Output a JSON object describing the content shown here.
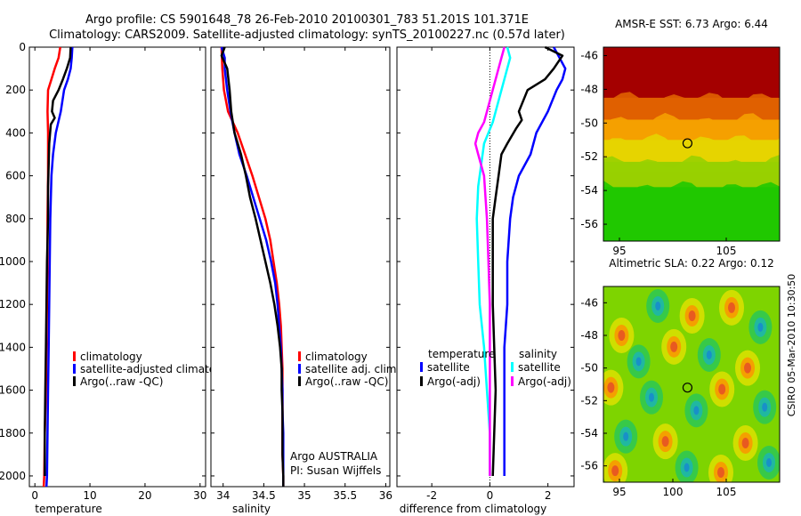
{
  "title": {
    "line1": "Argo profile: CS 5901648_78 26-Feb-2010 20100301_783 51.201S 101.371E",
    "line2": "Climatology: CARS2009. Satellite-adjusted climatology: synTS_20100227.nc (0.57d later)"
  },
  "side_label": "CSIRO 05-Mar-2010 10:30:50",
  "colors": {
    "red": "#ff0000",
    "blue": "#0000ff",
    "black": "#000000",
    "cyan": "#00ffff",
    "magenta": "#ff00ff"
  },
  "chart_data": [
    {
      "type": "line",
      "xlabel": "temperature",
      "ylabel": "",
      "xlim": [
        -1,
        31
      ],
      "ylim": [
        2050,
        0
      ],
      "xticks": [
        0,
        10,
        20,
        30
      ],
      "yticks": [
        0,
        200,
        400,
        600,
        800,
        1000,
        1200,
        1400,
        1600,
        1800,
        2000
      ],
      "legend": [
        "climatology",
        "satellite-adjusted climatolo",
        "Argo(..raw -QC)"
      ],
      "legend_placement": "lower-right",
      "series": [
        {
          "name": "climatology",
          "color": "red",
          "points": [
            [
              4.6,
              0
            ],
            [
              4.3,
              50
            ],
            [
              3.6,
              100
            ],
            [
              3.0,
              150
            ],
            [
              2.4,
              200
            ],
            [
              2.3,
              300
            ],
            [
              2.4,
              400
            ],
            [
              2.4,
              500
            ],
            [
              2.4,
              600
            ],
            [
              2.3,
              800
            ],
            [
              2.3,
              1000
            ],
            [
              2.2,
              1200
            ],
            [
              2.1,
              1400
            ],
            [
              2.0,
              1600
            ],
            [
              1.8,
              1800
            ],
            [
              1.7,
              2000
            ],
            [
              1.6,
              2050
            ]
          ]
        },
        {
          "name": "satellite-adjusted climatolo",
          "color": "blue",
          "points": [
            [
              6.8,
              0
            ],
            [
              6.7,
              50
            ],
            [
              6.5,
              100
            ],
            [
              6.0,
              150
            ],
            [
              5.3,
              200
            ],
            [
              4.7,
              300
            ],
            [
              3.8,
              400
            ],
            [
              3.3,
              500
            ],
            [
              3.0,
              600
            ],
            [
              2.8,
              800
            ],
            [
              2.7,
              1000
            ],
            [
              2.6,
              1200
            ],
            [
              2.5,
              1400
            ],
            [
              2.4,
              1600
            ],
            [
              2.3,
              1800
            ],
            [
              2.2,
              2000
            ],
            [
              2.1,
              2050
            ]
          ]
        },
        {
          "name": "Argo(..raw -QC)",
          "color": "black",
          "points": [
            [
              6.5,
              0
            ],
            [
              6.4,
              50
            ],
            [
              5.8,
              100
            ],
            [
              5.1,
              150
            ],
            [
              4.3,
              200
            ],
            [
              3.3,
              250
            ],
            [
              3.1,
              300
            ],
            [
              3.6,
              330
            ],
            [
              2.9,
              360
            ],
            [
              2.6,
              450
            ],
            [
              2.5,
              550
            ],
            [
              2.4,
              650
            ],
            [
              2.4,
              800
            ],
            [
              2.2,
              1000
            ],
            [
              2.1,
              1200
            ],
            [
              2.0,
              1400
            ],
            [
              1.9,
              1600
            ],
            [
              1.8,
              1800
            ],
            [
              1.8,
              2000
            ]
          ]
        }
      ],
      "annotations": []
    },
    {
      "type": "line",
      "xlabel": "salinity",
      "ylabel": "",
      "xlim": [
        33.85,
        36.05
      ],
      "ylim": [
        2050,
        0
      ],
      "xticks": [
        34,
        34.5,
        35,
        35.5,
        36
      ],
      "legend": [
        "climatology",
        "satellite adj. clim.",
        "Argo(..raw -QC)"
      ],
      "legend_placement": "lower-right",
      "series": [
        {
          "name": "climatology",
          "color": "red",
          "points": [
            [
              33.98,
              0
            ],
            [
              33.99,
              100
            ],
            [
              34.01,
              200
            ],
            [
              34.06,
              300
            ],
            [
              34.18,
              400
            ],
            [
              34.27,
              500
            ],
            [
              34.36,
              600
            ],
            [
              34.44,
              700
            ],
            [
              34.52,
              800
            ],
            [
              34.58,
              900
            ],
            [
              34.62,
              1000
            ],
            [
              34.66,
              1100
            ],
            [
              34.69,
              1200
            ],
            [
              34.71,
              1300
            ],
            [
              34.72,
              1400
            ],
            [
              34.73,
              1500
            ],
            [
              34.73,
              1600
            ],
            [
              34.73,
              1700
            ],
            [
              34.73,
              1800
            ],
            [
              34.73,
              1900
            ],
            [
              34.74,
              2000
            ],
            [
              34.74,
              2050
            ]
          ]
        },
        {
          "name": "satellite adj. clim.",
          "color": "blue",
          "points": [
            [
              33.98,
              0
            ],
            [
              34.02,
              50
            ],
            [
              34.02,
              100
            ],
            [
              34.05,
              200
            ],
            [
              34.09,
              300
            ],
            [
              34.14,
              400
            ],
            [
              34.2,
              500
            ],
            [
              34.29,
              600
            ],
            [
              34.37,
              700
            ],
            [
              34.45,
              800
            ],
            [
              34.53,
              900
            ],
            [
              34.59,
              1000
            ],
            [
              34.64,
              1100
            ],
            [
              34.67,
              1200
            ],
            [
              34.69,
              1300
            ],
            [
              34.71,
              1400
            ],
            [
              34.72,
              1500
            ],
            [
              34.73,
              1600
            ],
            [
              34.73,
              1700
            ],
            [
              34.74,
              1800
            ],
            [
              34.74,
              1900
            ],
            [
              34.74,
              2000
            ],
            [
              34.74,
              2050
            ]
          ]
        },
        {
          "name": "Argo(..raw -QC)",
          "color": "black",
          "points": [
            [
              34.02,
              0
            ],
            [
              33.98,
              40
            ],
            [
              34.05,
              100
            ],
            [
              34.08,
              200
            ],
            [
              34.1,
              300
            ],
            [
              34.14,
              400
            ],
            [
              34.22,
              500
            ],
            [
              34.28,
              600
            ],
            [
              34.33,
              700
            ],
            [
              34.4,
              800
            ],
            [
              34.46,
              900
            ],
            [
              34.52,
              1000
            ],
            [
              34.58,
              1100
            ],
            [
              34.63,
              1200
            ],
            [
              34.67,
              1300
            ],
            [
              34.7,
              1400
            ],
            [
              34.72,
              1500
            ],
            [
              34.72,
              1600
            ],
            [
              34.73,
              1700
            ],
            [
              34.73,
              1800
            ],
            [
              34.73,
              1900
            ],
            [
              34.74,
              2000
            ],
            [
              34.74,
              2050
            ]
          ]
        }
      ],
      "annotations": [
        "Argo AUSTRALIA",
        "PI: Susan Wijffels"
      ]
    },
    {
      "type": "line",
      "xlabel": "difference from climatology",
      "ylabel": "",
      "xlim": [
        -3.2,
        2.9
      ],
      "ylim": [
        2050,
        0
      ],
      "xticks": [
        -2,
        0,
        2
      ],
      "legend": [
        "temperature",
        "satellite",
        "Argo(-adj)",
        "salinity",
        "satellite",
        "Argo(-adj)"
      ],
      "legend_placement": "lower-center",
      "series": [
        {
          "name": "temperature satellite",
          "color": "blue",
          "points": [
            [
              2.2,
              0
            ],
            [
              2.4,
              50
            ],
            [
              2.6,
              100
            ],
            [
              2.5,
              150
            ],
            [
              2.3,
              200
            ],
            [
              2.0,
              300
            ],
            [
              1.6,
              400
            ],
            [
              1.4,
              500
            ],
            [
              1.0,
              600
            ],
            [
              0.8,
              700
            ],
            [
              0.7,
              800
            ],
            [
              0.6,
              1000
            ],
            [
              0.6,
              1200
            ],
            [
              0.5,
              1400
            ],
            [
              0.5,
              1600
            ],
            [
              0.5,
              1800
            ],
            [
              0.5,
              2000
            ]
          ]
        },
        {
          "name": "temperature Argo(-adj)",
          "color": "black",
          "points": [
            [
              1.9,
              0
            ],
            [
              2.5,
              40
            ],
            [
              2.3,
              80
            ],
            [
              2.2,
              100
            ],
            [
              1.9,
              150
            ],
            [
              1.3,
              200
            ],
            [
              1.0,
              300
            ],
            [
              1.1,
              340
            ],
            [
              0.9,
              380
            ],
            [
              0.6,
              450
            ],
            [
              0.4,
              500
            ],
            [
              0.3,
              600
            ],
            [
              0.2,
              700
            ],
            [
              0.1,
              800
            ],
            [
              0.1,
              1000
            ],
            [
              0.1,
              1200
            ],
            [
              0.15,
              1400
            ],
            [
              0.2,
              1600
            ],
            [
              0.15,
              1800
            ],
            [
              0.1,
              2000
            ]
          ]
        },
        {
          "name": "salinity satellite",
          "color": "cyan",
          "points": [
            [
              0.6,
              0
            ],
            [
              0.7,
              50
            ],
            [
              0.5,
              150
            ],
            [
              0.3,
              250
            ],
            [
              0.1,
              350
            ],
            [
              -0.2,
              450
            ],
            [
              -0.3,
              550
            ],
            [
              -0.4,
              650
            ],
            [
              -0.45,
              800
            ],
            [
              -0.4,
              1000
            ],
            [
              -0.35,
              1200
            ],
            [
              -0.2,
              1400
            ],
            [
              -0.1,
              1600
            ],
            [
              0.0,
              1800
            ],
            [
              0.0,
              2000
            ]
          ]
        },
        {
          "name": "salinity Argo(-adj)",
          "color": "magenta",
          "points": [
            [
              0.5,
              0
            ],
            [
              0.4,
              50
            ],
            [
              0.2,
              150
            ],
            [
              0.0,
              250
            ],
            [
              -0.2,
              350
            ],
            [
              -0.4,
              400
            ],
            [
              -0.5,
              450
            ],
            [
              -0.4,
              500
            ],
            [
              -0.3,
              550
            ],
            [
              -0.2,
              600
            ],
            [
              -0.15,
              700
            ],
            [
              -0.1,
              800
            ],
            [
              -0.05,
              1000
            ],
            [
              0.0,
              1200
            ],
            [
              0.0,
              1400
            ],
            [
              0.0,
              1600
            ],
            [
              0.0,
              1800
            ],
            [
              0.0,
              2000
            ]
          ]
        }
      ],
      "annotations": []
    },
    {
      "type": "heatmap",
      "title": "AMSR-E SST: 6.73 Argo: 6.44",
      "xlim": [
        93.5,
        110
      ],
      "ylim": [
        -57,
        -45.5
      ],
      "xticks": [
        95,
        105
      ],
      "yticks": [
        -46,
        -48,
        -50,
        -52,
        -54,
        -56
      ],
      "marker": [
        101.37,
        -51.2
      ],
      "bands": [
        {
          "lat_range": [
            -45.5,
            -48.5
          ],
          "color": "#a40000"
        },
        {
          "lat_range": [
            -48.5,
            -49.8
          ],
          "color": "#e06000"
        },
        {
          "lat_range": [
            -49.8,
            -51.0
          ],
          "color": "#f5a000"
        },
        {
          "lat_range": [
            -51.0,
            -52.3
          ],
          "color": "#e6d400"
        },
        {
          "lat_range": [
            -52.3,
            -53.8
          ],
          "color": "#98d000"
        },
        {
          "lat_range": [
            -53.8,
            -57.0
          ],
          "color": "#20c800"
        }
      ]
    },
    {
      "type": "heatmap",
      "title": "Altimetric SLA: 0.22 Argo: 0.12",
      "xlim": [
        93.5,
        110
      ],
      "ylim": [
        -57,
        -45
      ],
      "xticks": [
        95,
        100,
        105
      ],
      "yticks": [
        -46,
        -48,
        -50,
        -52,
        -54,
        -56
      ],
      "marker": [
        101.37,
        -51.2
      ],
      "background": "#7ed400",
      "features": [
        {
          "lon": 95.2,
          "lat": -48.0,
          "kind": "high"
        },
        {
          "lon": 98.6,
          "lat": -46.2,
          "kind": "low"
        },
        {
          "lon": 101.8,
          "lat": -46.8,
          "kind": "high"
        },
        {
          "lon": 105.5,
          "lat": -46.3,
          "kind": "high"
        },
        {
          "lon": 108.2,
          "lat": -47.5,
          "kind": "low"
        },
        {
          "lon": 96.8,
          "lat": -49.6,
          "kind": "low"
        },
        {
          "lon": 100.1,
          "lat": -48.7,
          "kind": "high"
        },
        {
          "lon": 103.4,
          "lat": -49.2,
          "kind": "low"
        },
        {
          "lon": 107.0,
          "lat": -50.0,
          "kind": "high"
        },
        {
          "lon": 94.2,
          "lat": -51.2,
          "kind": "high"
        },
        {
          "lon": 98.0,
          "lat": -51.8,
          "kind": "low"
        },
        {
          "lon": 102.2,
          "lat": -52.6,
          "kind": "low"
        },
        {
          "lon": 104.6,
          "lat": -51.3,
          "kind": "high"
        },
        {
          "lon": 108.6,
          "lat": -52.4,
          "kind": "low"
        },
        {
          "lon": 95.6,
          "lat": -54.2,
          "kind": "low"
        },
        {
          "lon": 99.3,
          "lat": -54.5,
          "kind": "high"
        },
        {
          "lon": 106.8,
          "lat": -54.6,
          "kind": "high"
        },
        {
          "lon": 94.6,
          "lat": -56.3,
          "kind": "high"
        },
        {
          "lon": 101.3,
          "lat": -56.1,
          "kind": "low"
        },
        {
          "lon": 104.5,
          "lat": -56.4,
          "kind": "high"
        },
        {
          "lon": 109.0,
          "lat": -55.8,
          "kind": "low"
        }
      ]
    }
  ]
}
